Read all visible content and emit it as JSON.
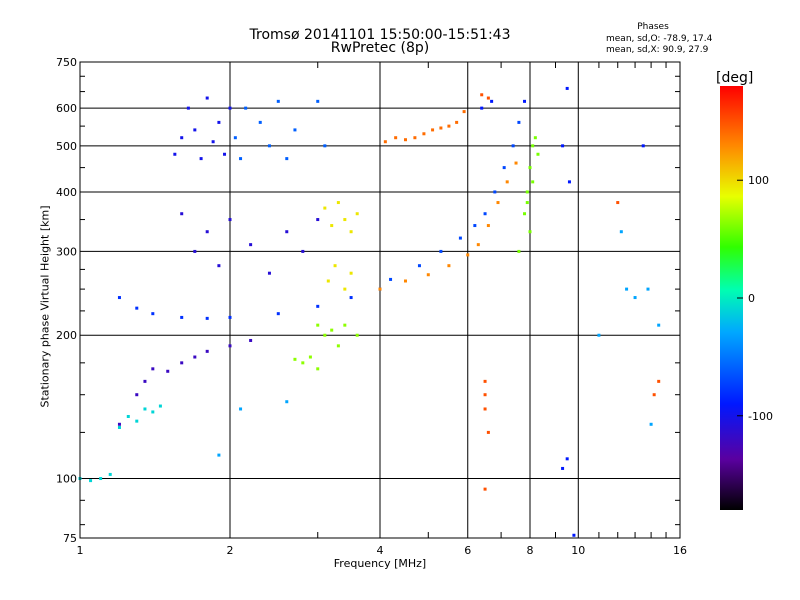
{
  "chart_data": {
    "type": "scatter",
    "title": "Tromsø 20141101 15:50:00-15:51:43",
    "subtitle": "RwPretec (8p)",
    "xlabel": "Frequency [MHz]",
    "ylabel": "Stationary phase Virtual Height [km]",
    "x_scale": "log",
    "y_scale": "log",
    "xlim": [
      1,
      16
    ],
    "ylim": [
      75,
      750
    ],
    "x_ticks": [
      1,
      2,
      4,
      6,
      8,
      10,
      16
    ],
    "y_ticks": [
      75,
      100,
      200,
      300,
      400,
      500,
      600,
      750
    ],
    "x_tick_labels": [
      "1",
      "2",
      "4",
      "6",
      "8",
      "10",
      "16"
    ],
    "y_tick_labels": [
      "75",
      "100",
      "200",
      "300",
      "400",
      "500",
      "600",
      "750"
    ],
    "grid": true,
    "stats": {
      "title": "Phases",
      "line_o": "mean, sd,O: -78.9, 17.4",
      "line_x": "mean, sd,X:  90.9, 27.9"
    },
    "colorbar": {
      "label": "[deg]",
      "range": [
        -180,
        180
      ],
      "ticks": [
        100,
        0,
        -100
      ],
      "tick_labels": [
        "100",
        "0",
        "-100"
      ]
    },
    "series": [
      {
        "points": [
          [
            1.55,
            480
          ],
          [
            1.6,
            520
          ],
          [
            1.65,
            600
          ],
          [
            1.7,
            540
          ],
          [
            1.75,
            470
          ],
          [
            1.8,
            630
          ],
          [
            1.85,
            510
          ],
          [
            1.9,
            560
          ],
          [
            1.95,
            480
          ],
          [
            2.0,
            600
          ]
        ],
        "phase": -100
      },
      {
        "points": [
          [
            2.05,
            520
          ],
          [
            2.1,
            470
          ],
          [
            2.15,
            600
          ],
          [
            2.3,
            560
          ],
          [
            2.4,
            500
          ],
          [
            2.5,
            620
          ],
          [
            2.6,
            470
          ],
          [
            2.7,
            540
          ],
          [
            3.0,
            620
          ],
          [
            3.1,
            500
          ]
        ],
        "phase": -60
      },
      {
        "points": [
          [
            1.6,
            360
          ],
          [
            1.7,
            300
          ],
          [
            1.8,
            330
          ],
          [
            1.9,
            280
          ],
          [
            2.0,
            350
          ],
          [
            2.2,
            310
          ],
          [
            2.4,
            270
          ],
          [
            2.6,
            330
          ],
          [
            2.8,
            300
          ],
          [
            3.0,
            350
          ]
        ],
        "phase": -110
      },
      {
        "points": [
          [
            1.2,
            240
          ],
          [
            1.3,
            228
          ],
          [
            1.4,
            222
          ],
          [
            1.6,
            218
          ],
          [
            1.8,
            217
          ],
          [
            2.0,
            218
          ],
          [
            2.5,
            222
          ],
          [
            3.0,
            230
          ],
          [
            3.5,
            240
          ],
          [
            4.0,
            250
          ]
        ],
        "phase": -80
      },
      {
        "points": [
          [
            4.0,
            250
          ],
          [
            4.5,
            260
          ],
          [
            5.0,
            268
          ],
          [
            5.5,
            280
          ],
          [
            6.0,
            295
          ],
          [
            6.3,
            310
          ],
          [
            6.6,
            340
          ],
          [
            6.9,
            380
          ],
          [
            7.2,
            420
          ],
          [
            7.5,
            460
          ]
        ],
        "phase": 130
      },
      {
        "points": [
          [
            4.2,
            262
          ],
          [
            4.8,
            280
          ],
          [
            5.3,
            300
          ],
          [
            5.8,
            320
          ],
          [
            6.2,
            340
          ],
          [
            6.5,
            360
          ],
          [
            6.8,
            400
          ],
          [
            7.1,
            450
          ],
          [
            7.4,
            500
          ],
          [
            7.6,
            560
          ]
        ],
        "phase": -70
      },
      {
        "points": [
          [
            7.6,
            300
          ],
          [
            7.8,
            360
          ],
          [
            7.9,
            400
          ],
          [
            8.0,
            450
          ],
          [
            8.1,
            500
          ],
          [
            8.2,
            520
          ],
          [
            8.3,
            480
          ],
          [
            8.1,
            420
          ],
          [
            7.9,
            380
          ],
          [
            8.0,
            330
          ]
        ],
        "phase": 60
      },
      {
        "points": [
          [
            3.1,
            370
          ],
          [
            3.2,
            340
          ],
          [
            3.3,
            380
          ],
          [
            3.4,
            350
          ],
          [
            3.5,
            330
          ],
          [
            3.6,
            360
          ],
          [
            3.15,
            260
          ],
          [
            3.25,
            280
          ],
          [
            3.4,
            250
          ],
          [
            3.5,
            270
          ]
        ],
        "phase": 95
      },
      {
        "points": [
          [
            3.0,
            210
          ],
          [
            3.1,
            200
          ],
          [
            3.2,
            205
          ],
          [
            3.3,
            190
          ],
          [
            3.4,
            210
          ],
          [
            3.6,
            200
          ],
          [
            2.8,
            175
          ],
          [
            2.9,
            180
          ],
          [
            3.0,
            170
          ],
          [
            2.7,
            178
          ]
        ],
        "phase": 65
      },
      {
        "points": [
          [
            1.4,
            170
          ],
          [
            1.5,
            168
          ],
          [
            1.6,
            175
          ],
          [
            1.7,
            180
          ],
          [
            1.8,
            185
          ],
          [
            2.0,
            190
          ],
          [
            2.2,
            195
          ],
          [
            1.35,
            160
          ],
          [
            1.3,
            150
          ],
          [
            1.2,
            130
          ]
        ],
        "phase": -120
      },
      {
        "points": [
          [
            1.0,
            100
          ],
          [
            1.05,
            99
          ],
          [
            1.1,
            100
          ],
          [
            1.15,
            102
          ],
          [
            1.2,
            128
          ],
          [
            1.3,
            132
          ],
          [
            1.4,
            138
          ],
          [
            1.45,
            142
          ],
          [
            1.25,
            135
          ],
          [
            1.35,
            140
          ]
        ],
        "phase": -10
      },
      {
        "points": [
          [
            4.1,
            510
          ],
          [
            4.3,
            520
          ],
          [
            4.5,
            515
          ],
          [
            4.7,
            520
          ],
          [
            4.9,
            530
          ],
          [
            5.1,
            540
          ],
          [
            5.3,
            545
          ],
          [
            5.5,
            550
          ],
          [
            5.7,
            560
          ],
          [
            5.9,
            590
          ]
        ],
        "phase": 140
      },
      {
        "points": [
          [
            6.4,
            600
          ],
          [
            6.7,
            620
          ],
          [
            7.8,
            620
          ],
          [
            9.5,
            660
          ],
          [
            9.3,
            500
          ],
          [
            9.6,
            420
          ],
          [
            9.5,
            110
          ],
          [
            9.3,
            105
          ],
          [
            9.8,
            76
          ],
          [
            13.5,
            500
          ]
        ],
        "phase": -90
      },
      {
        "points": [
          [
            6.4,
            640
          ],
          [
            6.6,
            630
          ],
          [
            6.5,
            160
          ],
          [
            6.5,
            150
          ],
          [
            6.5,
            140
          ],
          [
            6.6,
            125
          ],
          [
            6.5,
            95
          ],
          [
            12.0,
            380
          ],
          [
            14.2,
            150
          ],
          [
            14.5,
            160
          ]
        ],
        "phase": 150
      },
      {
        "points": [
          [
            11.0,
            200
          ],
          [
            12.5,
            250
          ],
          [
            13.0,
            240
          ],
          [
            14.0,
            130
          ],
          [
            14.5,
            210
          ],
          [
            1.9,
            112
          ],
          [
            2.1,
            140
          ],
          [
            2.6,
            145
          ],
          [
            13.8,
            250
          ],
          [
            12.2,
            330
          ]
        ],
        "phase": -30
      }
    ]
  }
}
